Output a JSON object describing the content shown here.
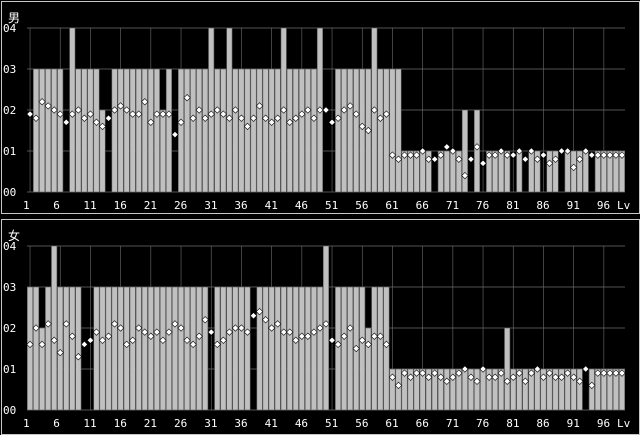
{
  "chart_data": [
    {
      "type": "bar",
      "title": "男",
      "x_unit": "Lv",
      "x_ticks": [
        1,
        6,
        11,
        16,
        21,
        26,
        31,
        36,
        41,
        46,
        51,
        56,
        61,
        66,
        71,
        76,
        81,
        86,
        91,
        96
      ],
      "y_ticks": [
        "00",
        "01",
        "02",
        "03",
        "04"
      ],
      "ylim": [
        0,
        4
      ],
      "grid": true,
      "x": [
        1,
        2,
        3,
        4,
        5,
        6,
        7,
        8,
        9,
        10,
        11,
        12,
        13,
        14,
        15,
        16,
        17,
        18,
        19,
        20,
        21,
        22,
        23,
        24,
        25,
        26,
        27,
        28,
        29,
        30,
        31,
        32,
        33,
        34,
        35,
        36,
        37,
        38,
        39,
        40,
        41,
        42,
        43,
        44,
        45,
        46,
        47,
        48,
        49,
        50,
        51,
        52,
        53,
        54,
        55,
        56,
        57,
        58,
        59,
        60,
        61,
        62,
        63,
        64,
        65,
        66,
        67,
        68,
        69,
        70,
        71,
        72,
        73,
        74,
        75,
        76,
        77,
        78,
        79,
        80,
        81,
        82,
        83,
        84,
        85,
        86,
        87,
        88,
        89,
        90,
        91,
        92,
        93,
        94,
        95,
        96,
        97,
        98,
        99
      ],
      "series": [
        {
          "values": [
            0,
            3,
            3,
            3,
            3,
            3,
            0,
            4,
            3,
            3,
            3,
            3,
            2,
            0,
            3,
            3,
            3,
            3,
            3,
            3,
            3,
            3,
            2,
            3,
            0,
            3,
            3,
            3,
            3,
            3,
            4,
            3,
            3,
            4,
            3,
            3,
            3,
            3,
            3,
            3,
            3,
            3,
            4,
            3,
            3,
            3,
            3,
            3,
            4,
            0,
            0,
            3,
            3,
            3,
            3,
            3,
            3,
            4,
            3,
            3,
            3,
            3,
            1,
            1,
            1,
            1,
            1,
            0,
            1,
            1,
            1,
            1,
            2,
            0,
            2,
            0,
            1,
            1,
            1,
            1,
            0,
            1,
            0,
            1,
            1,
            0,
            1,
            1,
            0,
            1,
            1,
            1,
            1,
            0,
            1,
            1,
            1,
            1,
            1
          ]
        },
        {
          "values": [
            1.9,
            1.8,
            2.2,
            2.1,
            2.0,
            1.9,
            1.7,
            1.9,
            2.0,
            1.8,
            1.9,
            1.7,
            1.6,
            1.8,
            2.0,
            2.1,
            2.0,
            1.9,
            1.9,
            2.2,
            1.7,
            1.9,
            1.9,
            1.9,
            1.4,
            1.7,
            2.3,
            1.8,
            2.0,
            1.8,
            1.9,
            2.0,
            1.9,
            1.8,
            2.0,
            1.8,
            1.6,
            1.8,
            2.1,
            1.8,
            1.7,
            1.8,
            2.0,
            1.7,
            1.8,
            1.9,
            2.0,
            1.8,
            2.0,
            2.0,
            1.7,
            1.8,
            2.0,
            2.1,
            1.9,
            1.6,
            1.5,
            2.0,
            1.8,
            1.9,
            0.9,
            0.8,
            0.9,
            0.9,
            0.9,
            1.0,
            0.8,
            0.8,
            0.9,
            1.1,
            1.0,
            0.8,
            0.4,
            0.8,
            1.1,
            0.7,
            0.9,
            0.9,
            1.0,
            0.9,
            0.9,
            1.0,
            0.8,
            1.0,
            0.8,
            0.9,
            0.7,
            0.8,
            1.0,
            1.0,
            0.6,
            0.8,
            1.0,
            0.9,
            0.9,
            0.9,
            0.9,
            0.9,
            0.9
          ]
        }
      ]
    },
    {
      "type": "bar",
      "title": "女",
      "x_unit": "Lv",
      "x_ticks": [
        1,
        6,
        11,
        16,
        21,
        26,
        31,
        36,
        41,
        46,
        51,
        56,
        61,
        66,
        71,
        76,
        81,
        86,
        91,
        96
      ],
      "y_ticks": [
        "00",
        "01",
        "02",
        "03",
        "04"
      ],
      "ylim": [
        0,
        4
      ],
      "grid": true,
      "x": [
        1,
        2,
        3,
        4,
        5,
        6,
        7,
        8,
        9,
        10,
        11,
        12,
        13,
        14,
        15,
        16,
        17,
        18,
        19,
        20,
        21,
        22,
        23,
        24,
        25,
        26,
        27,
        28,
        29,
        30,
        31,
        32,
        33,
        34,
        35,
        36,
        37,
        38,
        39,
        40,
        41,
        42,
        43,
        44,
        45,
        46,
        47,
        48,
        49,
        50,
        51,
        52,
        53,
        54,
        55,
        56,
        57,
        58,
        59,
        60,
        61,
        62,
        63,
        64,
        65,
        66,
        67,
        68,
        69,
        70,
        71,
        72,
        73,
        74,
        75,
        76,
        77,
        78,
        79,
        80,
        81,
        82,
        83,
        84,
        85,
        86,
        87,
        88,
        89,
        90,
        91,
        92,
        93,
        94,
        95,
        96,
        97,
        98,
        99
      ],
      "series": [
        {
          "values": [
            3,
            3,
            2,
            3,
            4,
            3,
            3,
            3,
            3,
            0,
            0,
            3,
            3,
            3,
            3,
            3,
            3,
            3,
            3,
            3,
            3,
            3,
            3,
            3,
            3,
            3,
            3,
            3,
            3,
            3,
            0,
            3,
            3,
            3,
            3,
            3,
            3,
            0,
            3,
            3,
            3,
            3,
            3,
            3,
            3,
            3,
            3,
            3,
            3,
            4,
            0,
            3,
            3,
            3,
            3,
            3,
            2,
            3,
            3,
            3,
            1,
            1,
            1,
            1,
            1,
            1,
            1,
            1,
            1,
            1,
            1,
            1,
            1,
            1,
            1,
            1,
            1,
            1,
            1,
            2,
            1,
            1,
            1,
            1,
            1,
            1,
            1,
            1,
            1,
            1,
            1,
            1,
            0,
            1,
            1,
            1,
            1,
            1,
            1
          ]
        },
        {
          "values": [
            1.6,
            2.0,
            1.6,
            2.1,
            1.7,
            1.4,
            2.1,
            1.8,
            1.3,
            1.6,
            1.7,
            1.9,
            1.7,
            1.8,
            2.1,
            2.0,
            1.6,
            1.7,
            2.0,
            1.9,
            1.8,
            1.9,
            1.7,
            1.9,
            2.1,
            2.0,
            1.7,
            1.6,
            1.8,
            2.2,
            1.9,
            1.6,
            1.7,
            1.9,
            2.0,
            2.0,
            1.9,
            2.3,
            2.4,
            2.2,
            2.0,
            2.1,
            1.9,
            1.9,
            1.7,
            1.8,
            1.8,
            1.9,
            2.0,
            2.1,
            1.7,
            1.6,
            1.8,
            2.0,
            1.5,
            1.7,
            1.6,
            1.8,
            1.8,
            1.6,
            0.8,
            0.6,
            0.9,
            0.8,
            0.9,
            0.9,
            0.8,
            0.9,
            0.8,
            0.7,
            0.8,
            0.9,
            1.0,
            0.8,
            0.7,
            1.0,
            0.8,
            0.8,
            0.9,
            0.7,
            0.8,
            0.9,
            0.7,
            0.9,
            1.0,
            0.8,
            0.9,
            0.8,
            0.8,
            0.9,
            0.8,
            0.7,
            1.0,
            0.6,
            0.9,
            0.9,
            0.9,
            0.9,
            0.9
          ]
        }
      ]
    }
  ]
}
